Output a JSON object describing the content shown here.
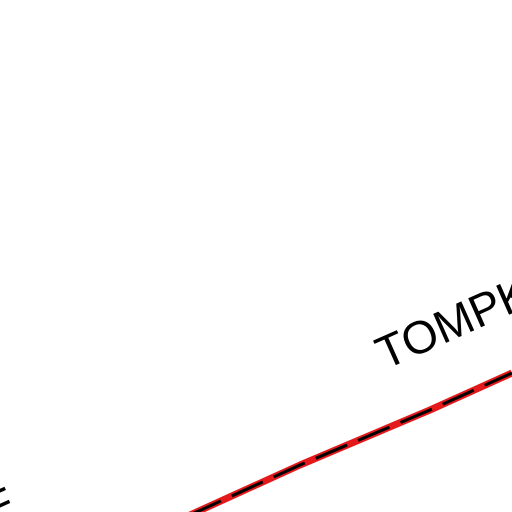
{
  "map": {
    "background_color": "#ffffff",
    "labels": {
      "main": "TOMPK",
      "edge": "E"
    },
    "boundary_line": {
      "outer_color": "#e3191c",
      "inner_color": "#000000",
      "style": "dashed"
    }
  }
}
